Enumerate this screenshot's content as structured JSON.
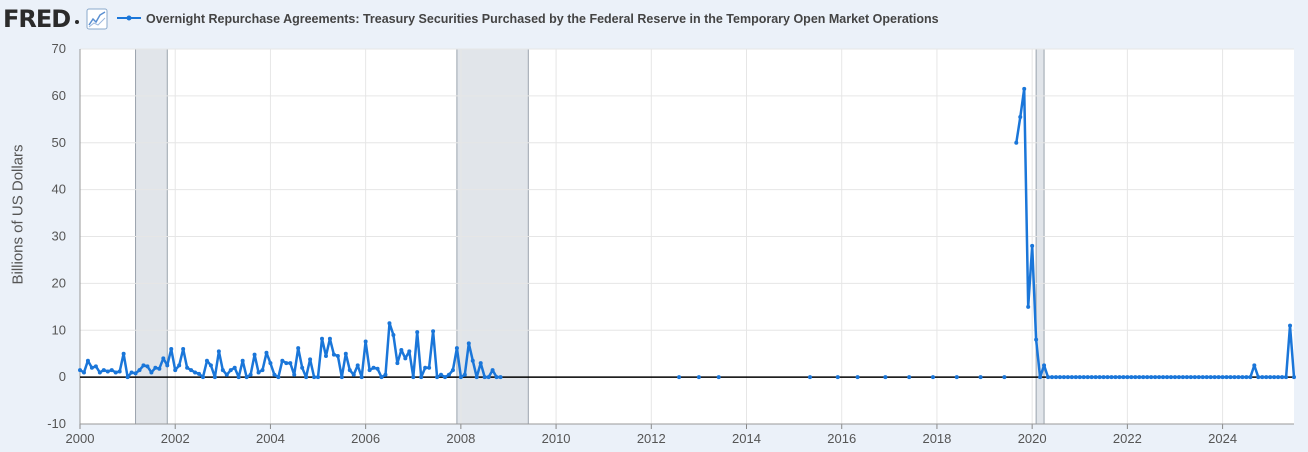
{
  "header": {
    "logo_text": "FRED",
    "graph_icon": "line-chart-icon",
    "series_title": "Overnight Repurchase Agreements: Treasury Securities Purchased by the Federal Reserve in the Temporary Open Market Operations"
  },
  "colors": {
    "line": "#1a76d9",
    "recession": "#e1e5ea",
    "zero_line": "#000000",
    "grid": "#e6e6e6",
    "background": "#ebf1f9",
    "plot": "#ffffff"
  },
  "chart_data": {
    "type": "line",
    "title": "Overnight Repurchase Agreements: Treasury Securities Purchased by the Federal Reserve in the Temporary Open Market Operations",
    "ylabel": "Billions of US Dollars",
    "xlabel": "",
    "xlim": [
      "2000-01",
      "2025-07"
    ],
    "ylim": [
      -10,
      70
    ],
    "y_ticks": [
      -10,
      0,
      10,
      20,
      30,
      40,
      50,
      60,
      70
    ],
    "x_ticks": [
      "2000",
      "2002",
      "2004",
      "2006",
      "2008",
      "2010",
      "2012",
      "2014",
      "2016",
      "2018",
      "2020",
      "2022",
      "2024"
    ],
    "grid": true,
    "recessions": [
      [
        "2001-03",
        "2001-11"
      ],
      [
        "2007-12",
        "2009-06"
      ],
      [
        "2020-02",
        "2020-04"
      ]
    ],
    "series": [
      {
        "name": "Overnight Repurchase Agreements: Treasury Securities Purchased by the Federal Reserve in the Temporary Open Market Operations",
        "segments": [
          [
            [
              "2000-01",
              1.5
            ],
            [
              "2000-02",
              1.0
            ],
            [
              "2000-03",
              3.5
            ],
            [
              "2000-04",
              2.0
            ],
            [
              "2000-05",
              2.3
            ],
            [
              "2000-06",
              1.0
            ],
            [
              "2000-07",
              1.5
            ],
            [
              "2000-08",
              1.2
            ],
            [
              "2000-09",
              1.5
            ],
            [
              "2000-10",
              1.0
            ],
            [
              "2000-11",
              1.2
            ],
            [
              "2000-12",
              5.0
            ],
            [
              "2001-01",
              0.0
            ],
            [
              "2001-02",
              1.0
            ],
            [
              "2001-03",
              0.8
            ],
            [
              "2001-04",
              1.5
            ],
            [
              "2001-05",
              2.5
            ],
            [
              "2001-06",
              2.3
            ],
            [
              "2001-07",
              1.0
            ],
            [
              "2001-08",
              2.0
            ],
            [
              "2001-09",
              1.8
            ],
            [
              "2001-10",
              4.0
            ],
            [
              "2001-11",
              2.5
            ],
            [
              "2001-12",
              6.0
            ],
            [
              "2002-01",
              1.5
            ],
            [
              "2002-02",
              2.5
            ],
            [
              "2002-03",
              6.0
            ],
            [
              "2002-04",
              2.0
            ],
            [
              "2002-05",
              1.5
            ],
            [
              "2002-06",
              1.0
            ],
            [
              "2002-07",
              0.7
            ],
            [
              "2002-08",
              0.0
            ],
            [
              "2002-09",
              3.5
            ],
            [
              "2002-10",
              2.5
            ],
            [
              "2002-11",
              0.0
            ],
            [
              "2002-12",
              5.5
            ],
            [
              "2003-01",
              1.5
            ],
            [
              "2003-02",
              0.5
            ],
            [
              "2003-03",
              1.5
            ],
            [
              "2003-04",
              2.0
            ],
            [
              "2003-05",
              0.0
            ],
            [
              "2003-06",
              3.5
            ],
            [
              "2003-07",
              0.0
            ],
            [
              "2003-08",
              0.5
            ],
            [
              "2003-09",
              4.8
            ],
            [
              "2003-10",
              1.0
            ],
            [
              "2003-11",
              1.5
            ],
            [
              "2003-12",
              5.2
            ],
            [
              "2004-01",
              3.0
            ],
            [
              "2004-02",
              0.5
            ],
            [
              "2004-03",
              0.0
            ],
            [
              "2004-04",
              3.5
            ],
            [
              "2004-05",
              3.0
            ],
            [
              "2004-06",
              3.0
            ],
            [
              "2004-07",
              0.5
            ],
            [
              "2004-08",
              6.2
            ],
            [
              "2004-09",
              2.0
            ],
            [
              "2004-10",
              0.0
            ],
            [
              "2004-11",
              3.8
            ],
            [
              "2004-12",
              0.0
            ],
            [
              "2005-01",
              0.0
            ],
            [
              "2005-02",
              8.2
            ],
            [
              "2005-03",
              4.5
            ],
            [
              "2005-04",
              8.2
            ],
            [
              "2005-05",
              4.8
            ],
            [
              "2005-06",
              4.5
            ],
            [
              "2005-07",
              0.0
            ],
            [
              "2005-08",
              5.0
            ],
            [
              "2005-09",
              1.5
            ],
            [
              "2005-10",
              0.5
            ],
            [
              "2005-11",
              2.5
            ],
            [
              "2005-12",
              0.0
            ],
            [
              "2006-01",
              7.6
            ],
            [
              "2006-02",
              1.5
            ],
            [
              "2006-03",
              2.0
            ],
            [
              "2006-04",
              1.8
            ],
            [
              "2006-05",
              0.0
            ],
            [
              "2006-06",
              0.5
            ],
            [
              "2006-07",
              11.5
            ],
            [
              "2006-08",
              9.0
            ],
            [
              "2006-09",
              3.0
            ],
            [
              "2006-10",
              5.8
            ],
            [
              "2006-11",
              4.0
            ],
            [
              "2006-12",
              5.5
            ],
            [
              "2007-01",
              0.0
            ],
            [
              "2007-02",
              9.6
            ],
            [
              "2007-03",
              0.0
            ],
            [
              "2007-04",
              2.0
            ],
            [
              "2007-05",
              2.0
            ],
            [
              "2007-06",
              9.8
            ],
            [
              "2007-07",
              0.0
            ],
            [
              "2007-08",
              0.5
            ],
            [
              "2007-09",
              0.0
            ],
            [
              "2007-10",
              0.5
            ],
            [
              "2007-11",
              1.5
            ],
            [
              "2007-12",
              6.2
            ],
            [
              "2008-01",
              0.0
            ],
            [
              "2008-02",
              0.5
            ],
            [
              "2008-03",
              7.2
            ],
            [
              "2008-04",
              3.5
            ],
            [
              "2008-05",
              0.0
            ],
            [
              "2008-06",
              3.0
            ],
            [
              "2008-07",
              0.0
            ],
            [
              "2008-08",
              0.0
            ],
            [
              "2008-09",
              1.5
            ],
            [
              "2008-10",
              0.0
            ],
            [
              "2008-11",
              0.0
            ]
          ],
          [
            [
              "2012-08",
              0.0
            ]
          ],
          [
            [
              "2013-01",
              0.0
            ]
          ],
          [
            [
              "2013-06",
              0.0
            ]
          ],
          [
            [
              "2015-05",
              0.0
            ]
          ],
          [
            [
              "2015-12",
              0.0
            ]
          ],
          [
            [
              "2016-05",
              0.0
            ]
          ],
          [
            [
              "2016-12",
              0.0
            ]
          ],
          [
            [
              "2017-06",
              0.0
            ]
          ],
          [
            [
              "2017-12",
              0.0
            ]
          ],
          [
            [
              "2018-06",
              0.0
            ]
          ],
          [
            [
              "2018-12",
              0.0
            ]
          ],
          [
            [
              "2019-06",
              0.0
            ]
          ],
          [
            [
              "2019-09",
              50.0
            ],
            [
              "2019-10",
              55.5
            ],
            [
              "2019-11",
              61.5
            ],
            [
              "2019-12",
              15.0
            ],
            [
              "2020-01",
              28.0
            ],
            [
              "2020-02",
              8.0
            ],
            [
              "2020-03",
              0.0
            ],
            [
              "2020-04",
              2.5
            ],
            [
              "2020-05",
              0.0
            ],
            [
              "2020-06",
              0.0
            ],
            [
              "2020-07",
              0.0
            ],
            [
              "2020-08",
              0.0
            ],
            [
              "2020-09",
              0.0
            ],
            [
              "2020-10",
              0.0
            ],
            [
              "2020-11",
              0.0
            ],
            [
              "2020-12",
              0.0
            ],
            [
              "2021-01",
              0.0
            ],
            [
              "2021-02",
              0.0
            ],
            [
              "2021-03",
              0.0
            ],
            [
              "2021-04",
              0.0
            ],
            [
              "2021-05",
              0.0
            ],
            [
              "2021-06",
              0.0
            ],
            [
              "2021-07",
              0.0
            ],
            [
              "2021-08",
              0.0
            ],
            [
              "2021-09",
              0.0
            ],
            [
              "2021-10",
              0.0
            ],
            [
              "2021-11",
              0.0
            ],
            [
              "2021-12",
              0.0
            ],
            [
              "2022-01",
              0.0
            ],
            [
              "2022-02",
              0.0
            ],
            [
              "2022-03",
              0.0
            ],
            [
              "2022-04",
              0.0
            ],
            [
              "2022-05",
              0.0
            ],
            [
              "2022-06",
              0.0
            ],
            [
              "2022-07",
              0.0
            ],
            [
              "2022-08",
              0.0
            ],
            [
              "2022-09",
              0.0
            ],
            [
              "2022-10",
              0.0
            ],
            [
              "2022-11",
              0.0
            ],
            [
              "2022-12",
              0.0
            ],
            [
              "2023-01",
              0.0
            ],
            [
              "2023-02",
              0.0
            ],
            [
              "2023-03",
              0.0
            ],
            [
              "2023-04",
              0.0
            ],
            [
              "2023-05",
              0.0
            ],
            [
              "2023-06",
              0.0
            ],
            [
              "2023-07",
              0.0
            ],
            [
              "2023-08",
              0.0
            ],
            [
              "2023-09",
              0.0
            ],
            [
              "2023-10",
              0.0
            ],
            [
              "2023-11",
              0.0
            ],
            [
              "2023-12",
              0.0
            ],
            [
              "2024-01",
              0.0
            ],
            [
              "2024-02",
              0.0
            ],
            [
              "2024-03",
              0.0
            ],
            [
              "2024-04",
              0.0
            ],
            [
              "2024-05",
              0.0
            ],
            [
              "2024-06",
              0.0
            ],
            [
              "2024-07",
              0.0
            ],
            [
              "2024-08",
              0.0
            ],
            [
              "2024-09",
              2.5
            ],
            [
              "2024-10",
              0.0
            ],
            [
              "2024-11",
              0.0
            ],
            [
              "2024-12",
              0.0
            ],
            [
              "2025-01",
              0.0
            ],
            [
              "2025-02",
              0.0
            ],
            [
              "2025-03",
              0.0
            ],
            [
              "2025-04",
              0.0
            ],
            [
              "2025-05",
              0.0
            ],
            [
              "2025-06",
              11.0
            ],
            [
              "2025-07",
              0.0
            ]
          ]
        ]
      }
    ]
  }
}
